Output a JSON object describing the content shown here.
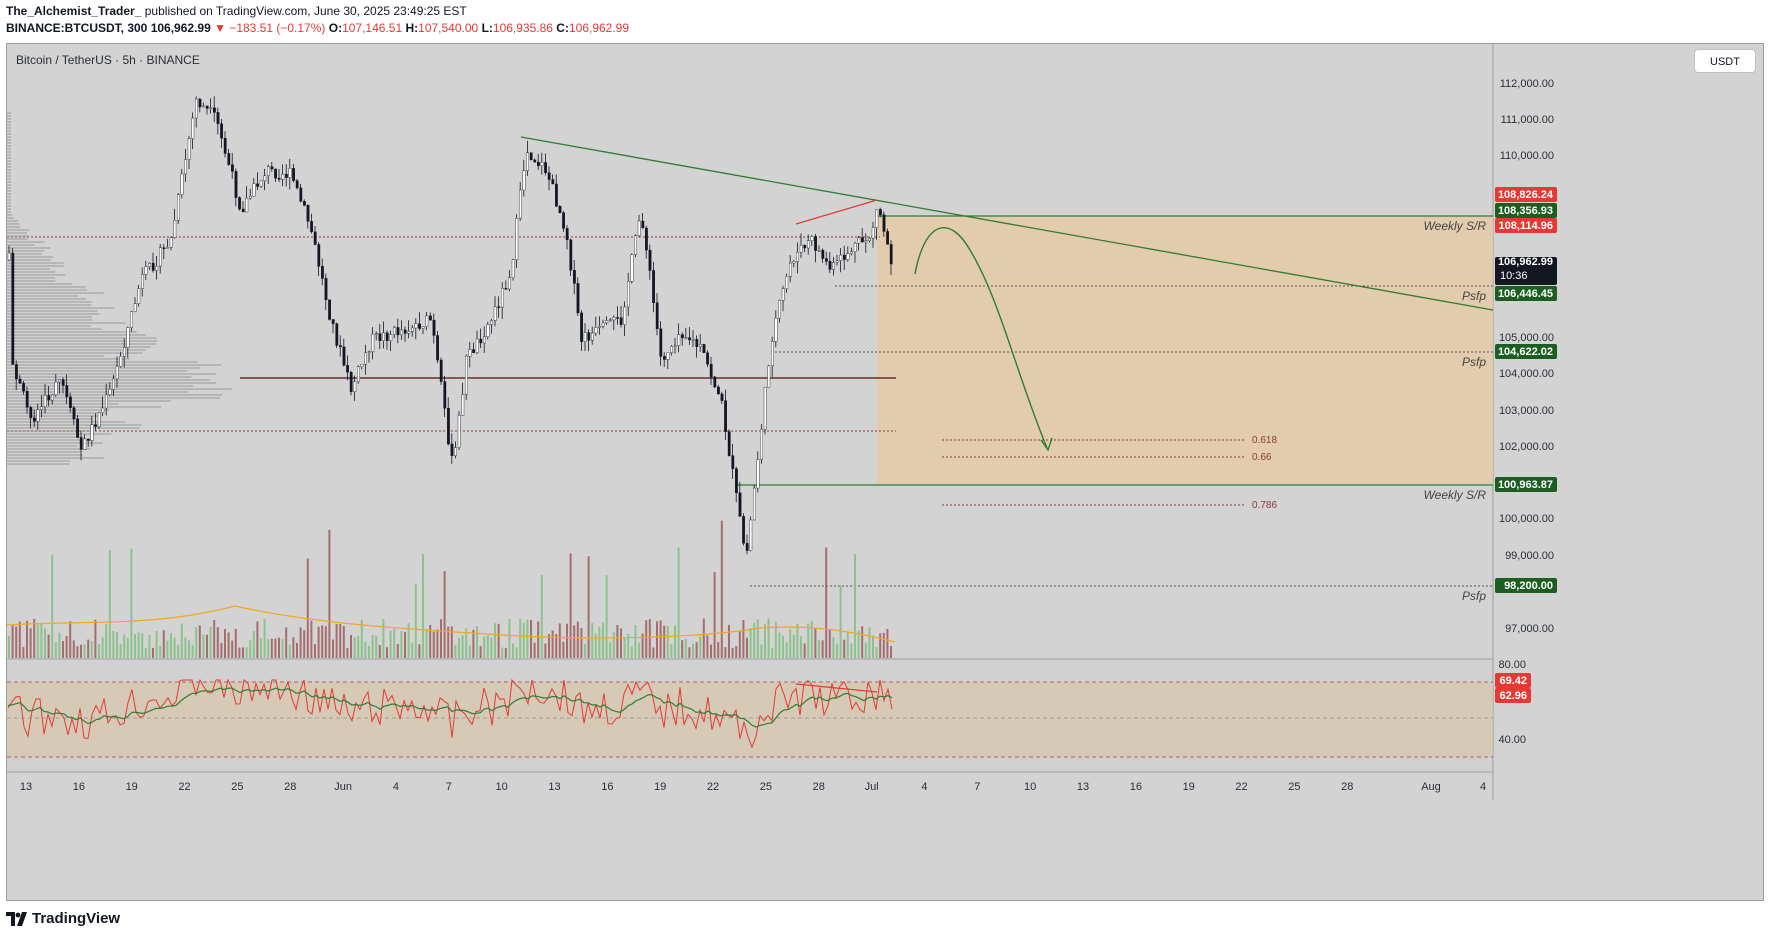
{
  "header": {
    "author": "The_Alchemist_Trader_",
    "published": "published on TradingView.com, June 30, 2025 23:49:25 EST",
    "symbol_line_prefix": "BINANCE:BTCUSDT, 300",
    "last": "106,962.99",
    "change": "▼ −183.51 (−0.17%)",
    "o_label": "O:",
    "o": "107,146.51",
    "h_label": "H:",
    "h": "107,540.00",
    "l_label": "L:",
    "l": "106,935.86",
    "c_label": "C:",
    "c": "106,962.99"
  },
  "chart": {
    "symbol_title": "Bitcoin / TetherUS · 5h · BINANCE",
    "unit": "USDT",
    "price_ticks": [
      "112,000.00",
      "111,000.00",
      "110,000.00",
      "105,000.00",
      "104,000.00",
      "103,000.00",
      "102,000.00",
      "100,000.00",
      "99,000.00",
      "97,000.00"
    ],
    "price_badges": [
      {
        "value": "108,826.24",
        "color": "#e53935"
      },
      {
        "value": "108,356.93",
        "color": "#1b5e20"
      },
      {
        "value": "108,114.96",
        "color": "#e53935"
      },
      {
        "value": "106,962.99",
        "color": "#131722",
        "extra": "10:36"
      },
      {
        "value": "106,446.45",
        "color": "#1b5e20"
      },
      {
        "value": "104,622.02",
        "color": "#1b5e20"
      },
      {
        "value": "100,963.87",
        "color": "#1b5e20"
      },
      {
        "value": "98,200.00",
        "color": "#1b5e20"
      }
    ],
    "annotations": {
      "weekly_sr_top": "Weekly S/R",
      "weekly_sr_bottom": "Weekly S/R",
      "psfp_1": "Psfp",
      "psfp_2": "Psfp",
      "psfp_3": "Psfp",
      "fib_618": "0.618",
      "fib_66": "0.66",
      "fib_786": "0.786"
    },
    "rsi_ticks": [
      "80.00",
      "40.00"
    ],
    "rsi_badges": [
      {
        "value": "69.42",
        "color": "#e53935"
      },
      {
        "value": "62.96",
        "color": "#e53935"
      }
    ],
    "x_ticks": [
      "13",
      "16",
      "19",
      "22",
      "25",
      "28",
      "Jun",
      "4",
      "7",
      "10",
      "13",
      "16",
      "19",
      "22",
      "25",
      "28",
      "Jul",
      "4",
      "7",
      "10",
      "13",
      "16",
      "19",
      "22",
      "25",
      "28",
      "Aug",
      "4"
    ],
    "colors": {
      "zone": "#e8c9a0",
      "trendline": "#2e7d32",
      "up": "#ffffff",
      "down": "#131722"
    }
  },
  "footer": {
    "brand": "TradingView",
    "logo_icon": "tradingview-logo-icon"
  }
}
